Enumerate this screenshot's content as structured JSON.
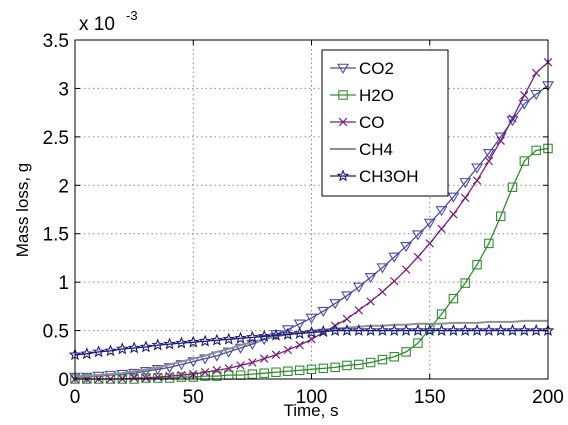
{
  "chart_data": {
    "type": "line",
    "xlabel": "Time, s",
    "ylabel": "Mass loss, g",
    "y_exponent_label": "x 10",
    "y_exponent_power": "-3",
    "xlim": [
      0,
      200
    ],
    "ylim": [
      0,
      0.0035
    ],
    "x_ticks": [
      0,
      50,
      100,
      150,
      200
    ],
    "x_tick_labels": [
      "0",
      "50",
      "100",
      "150",
      "200"
    ],
    "y_ticks": [
      0,
      0.0005,
      0.001,
      0.0015,
      0.002,
      0.0025,
      0.003,
      0.0035
    ],
    "y_tick_labels": [
      "0",
      "0.5",
      "1",
      "1.5",
      "2",
      "2.5",
      "3",
      "3.5"
    ],
    "grid": true,
    "legend_position": "top-right",
    "x": [
      0,
      5,
      10,
      15,
      20,
      25,
      30,
      35,
      40,
      45,
      50,
      55,
      60,
      65,
      70,
      75,
      80,
      85,
      90,
      95,
      100,
      105,
      110,
      115,
      120,
      125,
      130,
      135,
      140,
      145,
      150,
      155,
      160,
      165,
      170,
      175,
      180,
      185,
      190,
      195,
      200
    ],
    "series": [
      {
        "name": "CO2",
        "color": "#4a4ea8",
        "marker": "triangle-down",
        "values": [
          2e-05,
          2e-05,
          3e-05,
          4e-05,
          5e-05,
          6e-05,
          8e-05,
          0.0001,
          0.00012,
          0.00015,
          0.00018,
          0.00021,
          0.00024,
          0.00028,
          0.00032,
          0.00036,
          0.00041,
          0.00046,
          0.00051,
          0.00057,
          0.00063,
          0.0007,
          0.00078,
          0.00086,
          0.00095,
          0.00105,
          0.00115,
          0.00126,
          0.00137,
          0.00149,
          0.00161,
          0.00174,
          0.00188,
          0.00203,
          0.00218,
          0.00233,
          0.0025,
          0.00267,
          0.00284,
          0.00294,
          0.00303
        ]
      },
      {
        "name": "H2O",
        "color": "#2f8f2f",
        "marker": "square",
        "values": [
          0.0,
          0.0,
          0.0,
          0.0,
          0.0,
          0.0,
          1e-05,
          1e-05,
          1e-05,
          2e-05,
          2e-05,
          3e-05,
          3e-05,
          4e-05,
          4e-05,
          5e-05,
          6e-05,
          7e-05,
          8e-05,
          9e-05,
          0.0001,
          0.00011,
          0.00012,
          0.00014,
          0.00015,
          0.00017,
          0.0002,
          0.00023,
          0.00028,
          0.00037,
          0.00052,
          0.00067,
          0.00083,
          0.00099,
          0.00118,
          0.0014,
          0.00168,
          0.00198,
          0.00225,
          0.00236,
          0.00238
        ]
      },
      {
        "name": "CO",
        "color": "#7a1f7a",
        "marker": "x",
        "values": [
          0.0,
          0.0,
          0.0,
          0.0,
          0.0,
          1e-05,
          1e-05,
          2e-05,
          3e-05,
          4e-05,
          5e-05,
          7e-05,
          9e-05,
          0.00011,
          0.00014,
          0.00017,
          0.00021,
          0.00025,
          0.0003,
          0.00035,
          0.00041,
          0.00048,
          0.00055,
          0.00062,
          0.00071,
          0.0008,
          0.0009,
          0.00101,
          0.00113,
          0.00126,
          0.0014,
          0.00155,
          0.0017,
          0.00187,
          0.00205,
          0.00225,
          0.00246,
          0.00269,
          0.00293,
          0.00316,
          0.00327
        ]
      },
      {
        "name": "CH4",
        "color": "#909090",
        "marker": "none",
        "values": [
          3e-05,
          3e-05,
          4e-05,
          5e-05,
          6e-05,
          8e-05,
          0.0001,
          0.00012,
          0.00015,
          0.00018,
          0.00021,
          0.00024,
          0.00028,
          0.00031,
          0.00035,
          0.00038,
          0.00041,
          0.00044,
          0.00046,
          0.00048,
          0.0005,
          0.00051,
          0.00052,
          0.00053,
          0.00054,
          0.00055,
          0.00055,
          0.00056,
          0.00056,
          0.00057,
          0.00057,
          0.00057,
          0.00058,
          0.00058,
          0.00058,
          0.00059,
          0.00059,
          0.00059,
          0.0006,
          0.0006,
          0.0006
        ]
      },
      {
        "name": "CH3OH",
        "color": "#1a1a7a",
        "marker": "star",
        "values": [
          0.00025,
          0.00026,
          0.00028,
          0.00029,
          0.00031,
          0.00032,
          0.00033,
          0.00035,
          0.00036,
          0.00037,
          0.00038,
          0.00039,
          0.0004,
          0.00041,
          0.00042,
          0.00043,
          0.00044,
          0.00045,
          0.00046,
          0.00047,
          0.00048,
          0.00049,
          0.0005,
          0.0005,
          0.0005,
          0.0005,
          0.0005,
          0.0005,
          0.0005,
          0.0005,
          0.0005,
          0.0005,
          0.0005,
          0.0005,
          0.0005,
          0.0005,
          0.0005,
          0.0005,
          0.0005,
          0.0005,
          0.0005
        ]
      }
    ]
  }
}
